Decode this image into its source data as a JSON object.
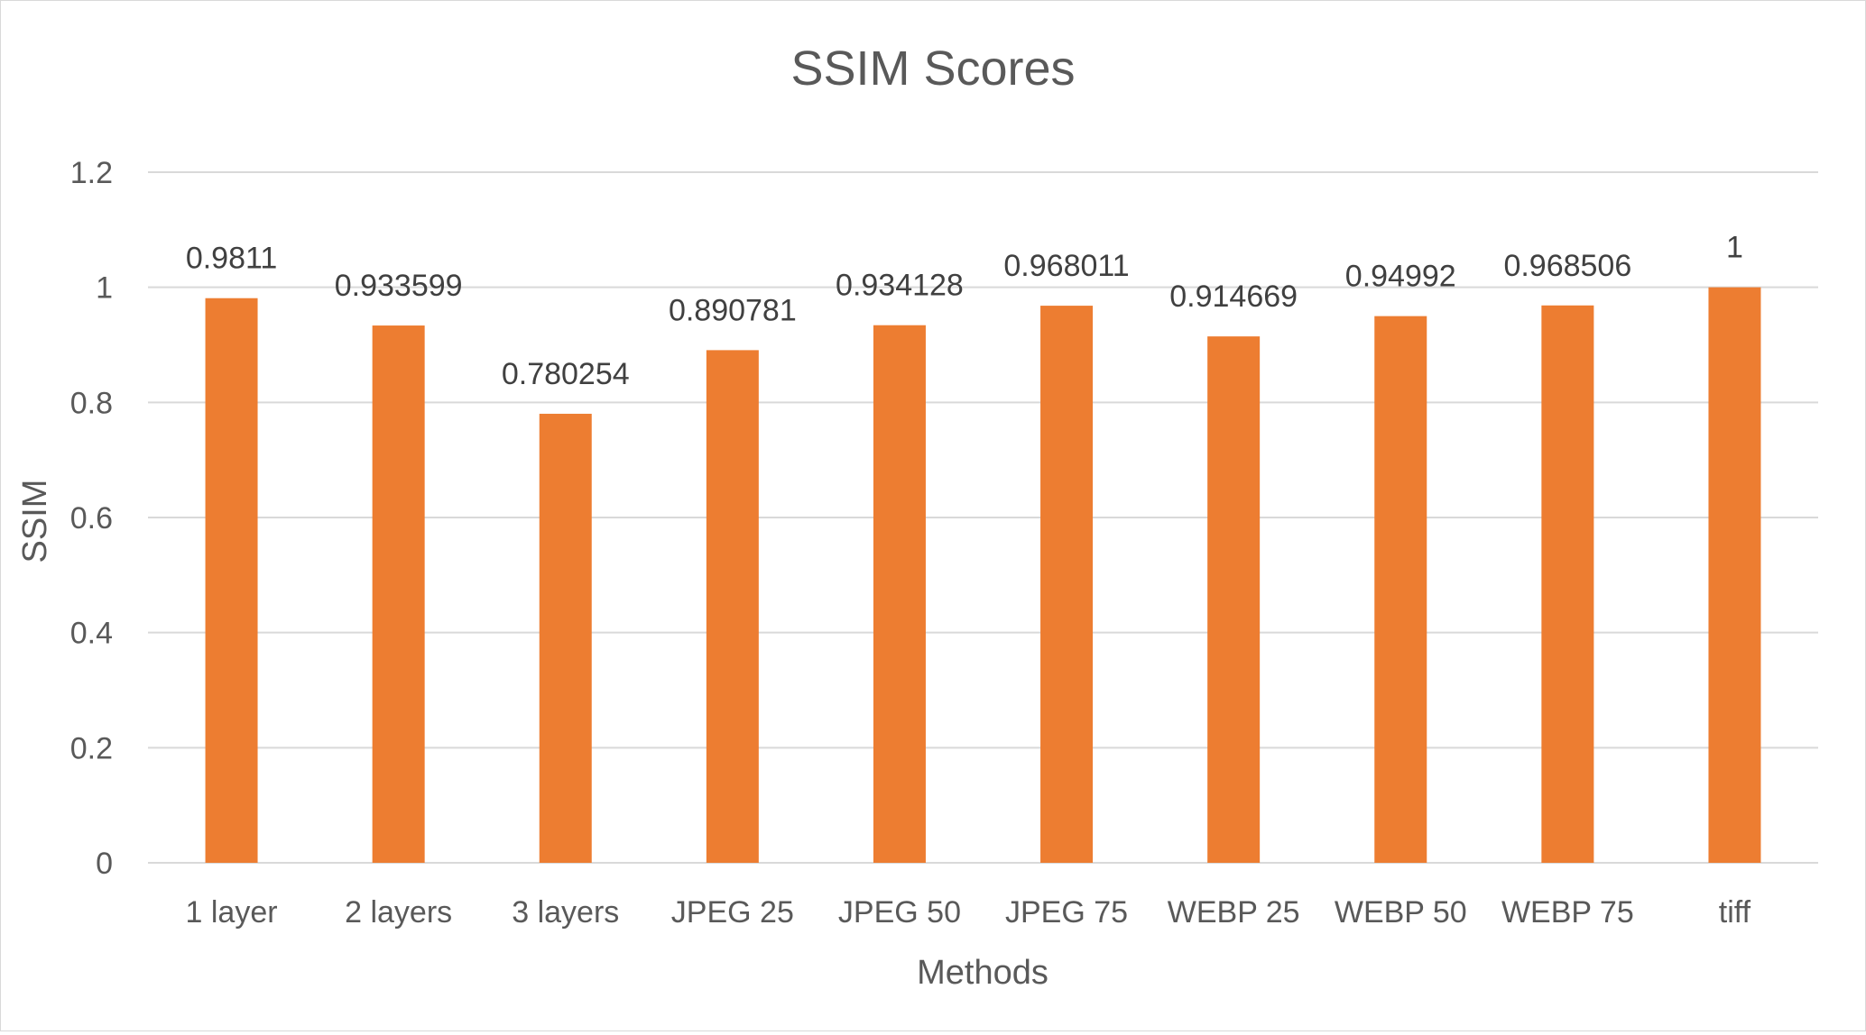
{
  "chart_data": {
    "type": "bar",
    "title": "SSIM Scores",
    "xlabel": "Methods",
    "ylabel": "SSIM",
    "categories": [
      "1 layer",
      "2 layers",
      "3 layers",
      "JPEG 25",
      "JPEG 50",
      "JPEG 75",
      "WEBP 25",
      "WEBP 50",
      "WEBP 75",
      "tiff"
    ],
    "values": [
      0.9811,
      0.933599,
      0.780254,
      0.890781,
      0.934128,
      0.968011,
      0.914669,
      0.94992,
      0.968506,
      1
    ],
    "data_labels": [
      "0.9811",
      "0.933599",
      "0.780254",
      "0.890781",
      "0.934128",
      "0.968011",
      "0.914669",
      "0.94992",
      "0.968506",
      "1"
    ],
    "ylim": [
      0,
      1.2
    ],
    "yticks": [
      0,
      0.2,
      0.4,
      0.6,
      0.8,
      1,
      1.2
    ],
    "ytick_labels": [
      "0",
      "0.2",
      "0.4",
      "0.6",
      "0.8",
      "1",
      "1.2"
    ],
    "grid": true,
    "legend": "none",
    "bar_color": "#ED7D31",
    "grid_color": "#D9D9D9"
  }
}
